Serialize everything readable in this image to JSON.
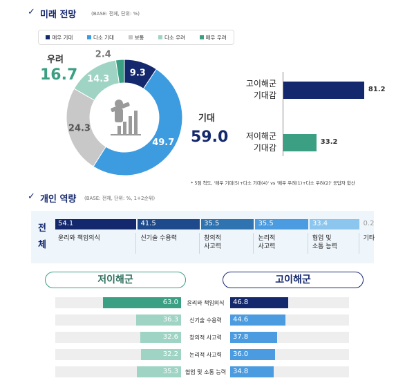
{
  "chart_data": [
    {
      "type": "pie",
      "title": "미래 전망",
      "subtitle": "(BASE: 전체, 단위: %)",
      "categories": [
        "매우 기대",
        "다소 기대",
        "보통",
        "다소 우려",
        "매우 우려"
      ],
      "values": [
        9.3,
        49.7,
        24.3,
        14.3,
        2.4
      ],
      "colors": [
        "#14286e",
        "#3d9be0",
        "#c8c8c8",
        "#9fd4c4",
        "#3a9f83"
      ],
      "groups": {
        "labels": [
          "우려",
          "기대"
        ],
        "values": [
          16.7,
          59
        ],
        "value_labels": [
          "16.7",
          "59.0"
        ],
        "colors": [
          "#3a9f83",
          "#14286e"
        ]
      }
    },
    {
      "type": "hbar",
      "categories": [
        "고이해군 기대감",
        "저이해군 기대감"
      ],
      "values": [
        81.2,
        33.2
      ],
      "colors": [
        "#14286e",
        "#3a9f83"
      ],
      "note": "* 5점 척도, '매우 기대(5)+다소 기대(4)' vs '매우 우려(1)+다소 우려(2)' 응답자 합산"
    },
    {
      "type": "stacked",
      "title": "개인 역량",
      "subtitle": "(BASE: 전체, 단위: %, 1+2순위)",
      "row_label": "전체",
      "categories": [
        "윤리와 책임의식",
        "신기술 수용력",
        "창의적 사고력",
        "논리적 사고력",
        "협업 및 소통 능력",
        "기타"
      ],
      "values": [
        54.1,
        41.5,
        35.5,
        35.5,
        33.4,
        0.2
      ],
      "colors": [
        "#14286e",
        "#1e4a8c",
        "#2f73b0",
        "#4a9be0",
        "#8cc6ee",
        "#e4e4e4"
      ]
    },
    {
      "type": "butterfly",
      "categories": [
        "윤리와 책임의식",
        "신기술 수용력",
        "창의적 사고력",
        "논리적 사고력",
        "협업 및 소통 능력"
      ],
      "series": [
        {
          "name": "저이해군",
          "color": "#3a9f83",
          "values": [
            63,
            36.3,
            32.6,
            32.2,
            35.3
          ],
          "value_labels": [
            "63.0",
            "36.3",
            "32.6",
            "32.2",
            "35.3"
          ]
        },
        {
          "name": "고이해군",
          "color": "#14286e",
          "values": [
            46.8,
            44.6,
            37.8,
            36,
            34.8
          ],
          "value_labels": [
            "46.8",
            "44.6",
            "37.8",
            "36.0",
            "34.8"
          ]
        }
      ]
    }
  ]
}
